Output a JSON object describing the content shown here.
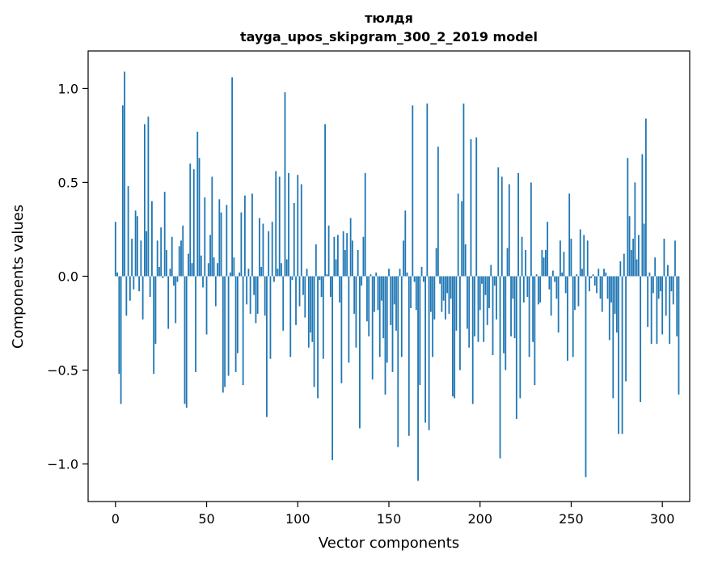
{
  "chart_data": {
    "type": "bar",
    "title": "тюлдя",
    "subtitle": "tayga_upos_skipgram_300_2_2019 model",
    "xlabel": "Vector components",
    "ylabel": "Components values",
    "xlim": [
      -15,
      315
    ],
    "ylim": [
      -1.2,
      1.2
    ],
    "xticks": [
      0,
      50,
      100,
      150,
      200,
      250,
      300
    ],
    "yticks": [
      -1.0,
      -0.5,
      0.0,
      0.5,
      1.0
    ],
    "ytick_labels": [
      "−1.0",
      "−0.5",
      "0.0",
      "0.5",
      "1.0"
    ],
    "grid": false,
    "bar_color": "#1f77b4",
    "values": [
      0.29,
      0.02,
      -0.52,
      -0.68,
      0.91,
      1.09,
      -0.21,
      0.48,
      -0.13,
      0.2,
      -0.07,
      0.35,
      0.32,
      -0.08,
      0.19,
      -0.23,
      0.81,
      0.24,
      0.85,
      -0.11,
      0.4,
      -0.52,
      -0.36,
      0.19,
      0.05,
      0.26,
      -0.01,
      0.45,
      0.14,
      -0.28,
      0.04,
      0.21,
      -0.05,
      -0.25,
      -0.03,
      0.16,
      0.19,
      0.27,
      -0.68,
      -0.7,
      0.12,
      0.6,
      0.07,
      0.57,
      -0.51,
      0.77,
      0.63,
      0.11,
      -0.06,
      0.42,
      -0.31,
      0.07,
      0.22,
      0.53,
      0.1,
      -0.16,
      0.07,
      0.41,
      0.34,
      -0.62,
      -0.59,
      0.38,
      -0.53,
      0.02,
      1.06,
      0.1,
      -0.51,
      -0.41,
      0.02,
      0.34,
      -0.58,
      0.43,
      -0.15,
      0.04,
      -0.2,
      0.44,
      -0.1,
      -0.25,
      -0.2,
      0.31,
      0.05,
      0.28,
      -0.21,
      -0.75,
      0.24,
      -0.44,
      0.29,
      -0.03,
      0.56,
      0.04,
      0.53,
      0.07,
      -0.29,
      0.98,
      0.09,
      0.55,
      -0.43,
      -0.02,
      0.39,
      -0.26,
      0.54,
      -0.16,
      0.49,
      -0.1,
      -0.22,
      0.04,
      -0.38,
      -0.3,
      -0.35,
      -0.59,
      0.17,
      -0.65,
      -0.02,
      -0.11,
      -0.44,
      0.81,
      0.01,
      0.27,
      -0.11,
      -0.98,
      0.21,
      0.09,
      0.22,
      -0.14,
      -0.57,
      0.24,
      0.14,
      0.23,
      -0.46,
      0.31,
      0.19,
      -0.2,
      -0.38,
      0.14,
      -0.81,
      -0.05,
      0.21,
      0.55,
      -0.24,
      -0.32,
      0.01,
      -0.55,
      -0.19,
      0.02,
      -0.18,
      -0.43,
      -0.13,
      -0.33,
      -0.63,
      -0.46,
      0.04,
      -0.26,
      -0.51,
      -0.15,
      -0.29,
      -0.91,
      0.04,
      -0.43,
      0.19,
      0.35,
      0.02,
      -0.85,
      -0.17,
      0.91,
      -0.03,
      -0.18,
      -1.09,
      -0.58,
      0.05,
      -0.03,
      -0.78,
      0.92,
      -0.82,
      -0.19,
      -0.43,
      -0.23,
      0.15,
      0.69,
      -0.04,
      -0.19,
      -0.13,
      -0.23,
      -0.09,
      -0.2,
      -0.12,
      -0.64,
      -0.65,
      -0.29,
      0.44,
      -0.5,
      0.4,
      0.92,
      0.17,
      -0.28,
      -0.38,
      0.73,
      -0.68,
      -0.32,
      0.74,
      -0.35,
      -0.18,
      -0.04,
      -0.35,
      -0.1,
      -0.26,
      -0.17,
      0.06,
      -0.42,
      -0.05,
      -0.23,
      0.58,
      -0.97,
      0.53,
      -0.41,
      -0.5,
      0.15,
      0.49,
      -0.32,
      -0.12,
      -0.33,
      -0.76,
      0.55,
      -0.65,
      0.21,
      -0.14,
      0.14,
      -0.11,
      -0.43,
      0.5,
      -0.35,
      -0.58,
      0.01,
      -0.15,
      -0.14,
      0.14,
      0.1,
      0.14,
      0.29,
      -0.07,
      -0.21,
      0.03,
      -0.03,
      -0.12,
      -0.3,
      0.19,
      0.02,
      0.13,
      -0.09,
      -0.45,
      0.44,
      0.2,
      -0.43,
      -0.18,
      0.01,
      -0.16,
      0.25,
      0.04,
      0.22,
      -1.07,
      0.19,
      -0.08,
      -0.01,
      0.01,
      -0.05,
      -0.09,
      0.04,
      -0.12,
      -0.19,
      0.04,
      0.02,
      -0.12,
      -0.34,
      -0.14,
      -0.65,
      -0.2,
      -0.3,
      -0.84,
      0.08,
      -0.84,
      0.12,
      -0.56,
      0.63,
      0.32,
      0.14,
      0.2,
      0.5,
      0.09,
      0.22,
      -0.67,
      0.65,
      0.28,
      0.84,
      -0.27,
      0.02,
      -0.36,
      -0.09,
      0.1,
      -0.36,
      -0.12,
      -0.08,
      -0.31,
      0.2,
      -0.21,
      0.06,
      -0.36,
      -0.08,
      -0.15,
      0.19,
      -0.32,
      -0.63
    ]
  }
}
